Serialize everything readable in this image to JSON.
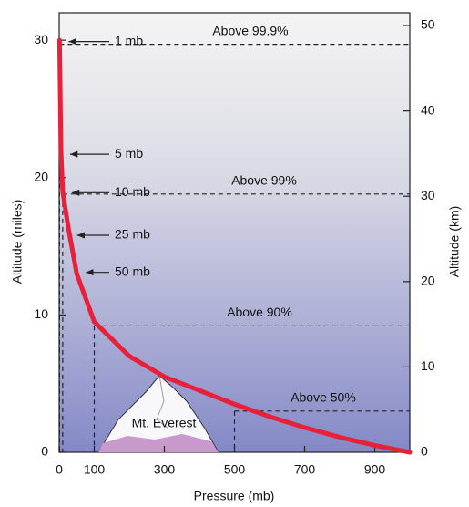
{
  "chart_data": {
    "type": "line",
    "xlabel": "Pressure (mb)",
    "ylabel": "Altitude (miles)",
    "y2label": "Altitude (km)",
    "xlim": [
      0,
      1000
    ],
    "xticks": [
      0,
      100,
      300,
      500,
      700,
      900
    ],
    "ylim": [
      0,
      32
    ],
    "yticks": [
      0,
      10,
      20,
      30
    ],
    "y2lim": [
      0,
      51.5
    ],
    "y2ticks": [
      0,
      10,
      20,
      30,
      40,
      50
    ],
    "x": [
      1,
      5,
      10,
      25,
      50,
      100,
      200,
      300,
      400,
      500,
      600,
      700,
      800,
      900,
      1000
    ],
    "series": [
      {
        "color": "#e8203a",
        "values": [
          30,
          22,
          19,
          16.5,
          13,
          9.5,
          7,
          5.5,
          4.5,
          3.5,
          2.6,
          1.8,
          1.1,
          0.5,
          0
        ]
      }
    ],
    "pressure_labels": [
      {
        "label": "1 mb",
        "pressure": 1,
        "altitude": 29.9
      },
      {
        "label": "5 mb",
        "pressure": 5,
        "altitude": 21.7
      },
      {
        "label": "10 mb",
        "pressure": 10,
        "altitude": 18.9
      },
      {
        "label": "25 mb",
        "pressure": 25,
        "altitude": 15.8
      },
      {
        "label": "50 mb",
        "pressure": 50,
        "altitude": 13.1
      }
    ],
    "levels": [
      {
        "label": "Above 99.9%",
        "pressure": 1,
        "altitude": 29.7
      },
      {
        "label": "Above 99%",
        "pressure": 10,
        "altitude": 18.8
      },
      {
        "label": "Above 90%",
        "pressure": 100,
        "altitude": 9.2
      },
      {
        "label": "Above 50%",
        "pressure": 500,
        "altitude": 3.0
      }
    ],
    "annotation": "Mt. Everest"
  }
}
